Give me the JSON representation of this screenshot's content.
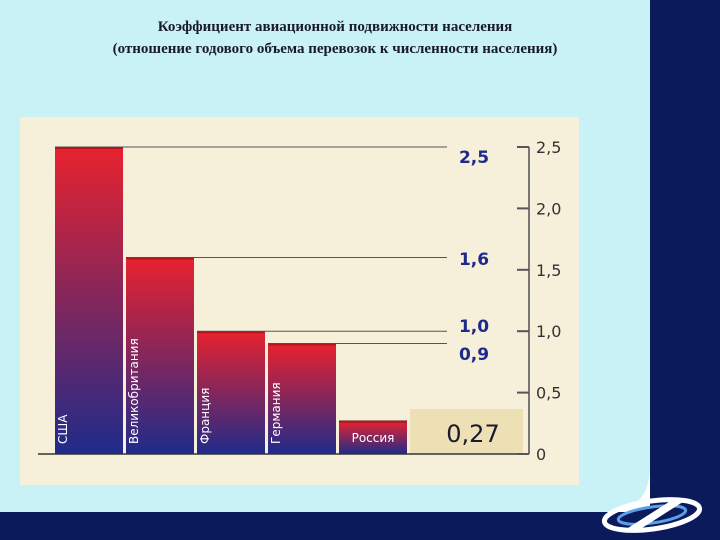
{
  "title": "Коэффициент авиационной подвижности населения",
  "subtitle": "(отношение годового объема перевозок к численности населения)",
  "colors": {
    "bar_top": "#e8222e",
    "bar_bottom": "#1f2b8a",
    "panel_bg": "#c8f2f6",
    "dark_bg": "#0a1a5a",
    "plot_bg": "#f6efda",
    "highlight_bg": "#ede0b4"
  },
  "chart_data": {
    "type": "bar",
    "categories": [
      "США",
      "Великобритания",
      "Франция",
      "Германия",
      "Россия"
    ],
    "values": [
      2.5,
      1.6,
      1.0,
      0.9,
      0.27
    ],
    "value_labels": [
      "2,5",
      "1,6",
      "1,0",
      "0,9",
      "0,27"
    ],
    "ylim": [
      0,
      2.5
    ],
    "y_ticks": [
      0,
      0.5,
      1.0,
      1.5,
      2.0,
      2.5
    ],
    "y_tick_labels": [
      "0",
      "0,5",
      "1,0",
      "1,5",
      "2,0",
      "2,5"
    ],
    "grid": false,
    "legend": "none"
  },
  "logo_icon": "airline-logo-icon"
}
